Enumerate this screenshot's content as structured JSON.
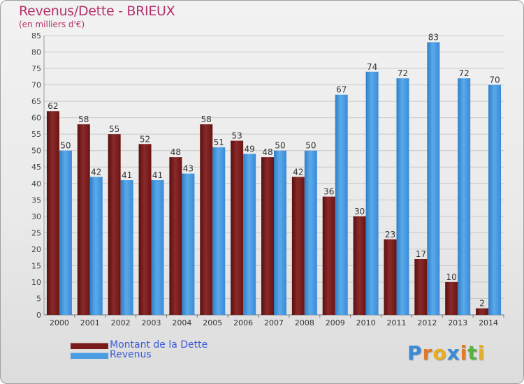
{
  "header": {
    "title": "Revenus/Dette - BRIEUX",
    "subtitle": "(en milliers d'€)"
  },
  "chart_data": {
    "type": "bar",
    "title": "Revenus/Dette - BRIEUX",
    "subtitle": "(en milliers d'€)",
    "xlabel": "",
    "ylabel": "",
    "ylim": [
      0,
      85
    ],
    "ytick_step": 5,
    "grid": true,
    "legend_position": "bottom-left",
    "categories": [
      "2000",
      "2001",
      "2002",
      "2003",
      "2004",
      "2005",
      "2006",
      "2007",
      "2008",
      "2009",
      "2010",
      "2011",
      "2012",
      "2013",
      "2014"
    ],
    "series": [
      {
        "name": "Montant de la Dette",
        "color": "#7a1c1c",
        "values": [
          62,
          58,
          55,
          52,
          48,
          58,
          53,
          48,
          42,
          36,
          30,
          23,
          17,
          10,
          2
        ]
      },
      {
        "name": "Revenus",
        "color": "#4a9de0",
        "values": [
          50,
          42,
          41,
          41,
          43,
          51,
          49,
          50,
          50,
          67,
          74,
          72,
          83,
          72,
          70
        ]
      }
    ]
  },
  "legend": {
    "items": [
      {
        "label": "Montant de la Dette",
        "color": "#7a1c1c"
      },
      {
        "label": "Revenus",
        "color": "#4a9de0"
      }
    ]
  },
  "logo": {
    "letters": [
      "P",
      "r",
      "o",
      "x",
      "i",
      "t",
      "i"
    ],
    "colors": [
      "#3a8ad8",
      "#e07a2a",
      "#e8b020",
      "#3a8ad8",
      "#e07a2a",
      "#5ab040",
      "#e8b020"
    ]
  }
}
